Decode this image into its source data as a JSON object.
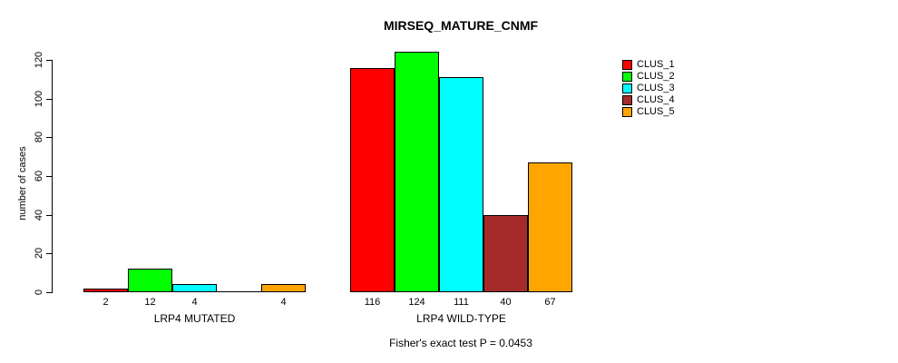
{
  "chart_data": {
    "type": "bar",
    "title": "MIRSEQ_MATURE_CNMF",
    "ylabel": "number of cases",
    "xlabel": "",
    "annotation": "Fisher's exact test P = 0.0453",
    "categories": [
      "LRP4 MUTATED",
      "LRP4 WILD-TYPE"
    ],
    "series": [
      {
        "name": "CLUS_1",
        "color": "#ff0000",
        "values": [
          2,
          116
        ]
      },
      {
        "name": "CLUS_2",
        "color": "#00ff00",
        "values": [
          12,
          124
        ]
      },
      {
        "name": "CLUS_3",
        "color": "#00ffff",
        "values": [
          4,
          111
        ]
      },
      {
        "name": "CLUS_4",
        "color": "#a52a2a",
        "values": [
          0,
          40
        ]
      },
      {
        "name": "CLUS_5",
        "color": "#ffa500",
        "values": [
          4,
          67
        ]
      }
    ],
    "yticks": [
      0,
      20,
      40,
      60,
      80,
      100,
      120
    ],
    "ylim": [
      0,
      124
    ],
    "grid": false,
    "legend_position": "top-right",
    "bar_value_labels": "shown under bars; zero values unlabeled",
    "axis_color": "#000000",
    "background_color": "#ffffff"
  }
}
